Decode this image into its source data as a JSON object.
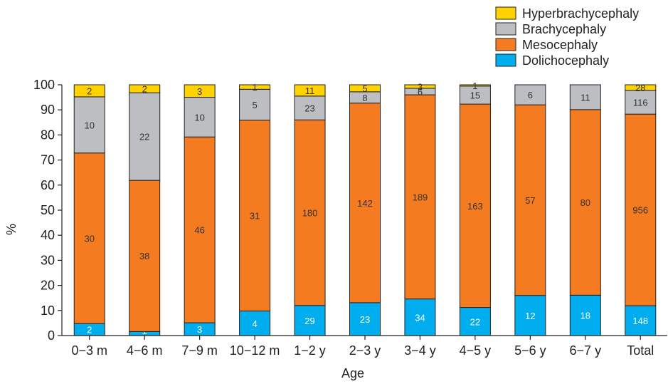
{
  "chart_data": {
    "type": "bar",
    "stacked": true,
    "categories": [
      "0−3 m",
      "4−6 m",
      "7−9 m",
      "10−12 m",
      "1−2 y",
      "2−3 y",
      "3−4 y",
      "4−5 y",
      "5−6 y",
      "6−7 y",
      "Total"
    ],
    "xlabel": "Age",
    "ylabel": "%",
    "ylim": [
      0,
      100
    ],
    "yticks": [
      "0",
      "10",
      "20",
      "30",
      "40",
      "50",
      "60",
      "70",
      "80",
      "90",
      "100"
    ],
    "grid": false,
    "legend_position": "top-right",
    "series": [
      {
        "name": "Dolichocephaly",
        "color": "#00aeef",
        "label_color": "#ffffff",
        "values": [
          4.8,
          1.6,
          5.1,
          9.8,
          12.0,
          13.1,
          14.6,
          11.2,
          16.0,
          16.1,
          11.9
        ],
        "labels": [
          "2",
          "1",
          "3",
          "4",
          "29",
          "23",
          "34",
          "22",
          "12",
          "18",
          "148"
        ]
      },
      {
        "name": "Mesocephaly",
        "color": "#f47b20",
        "label_color": "#333333",
        "values": [
          68.0,
          60.3,
          74.1,
          76.1,
          74.0,
          79.6,
          81.4,
          81.1,
          76.0,
          74.0,
          76.4
        ],
        "labels": [
          "30",
          "38",
          "46",
          "31",
          "180",
          "142",
          "189",
          "163",
          "57",
          "80",
          "956"
        ]
      },
      {
        "name": "Brachycephaly",
        "color": "#bdbec2",
        "label_color": "#333333",
        "values": [
          22.4,
          34.9,
          15.8,
          12.3,
          9.5,
          4.5,
          2.6,
          7.2,
          8.0,
          9.9,
          9.5
        ],
        "labels": [
          "10",
          "22",
          "10",
          "5",
          "23",
          "8",
          "6",
          "15",
          "6",
          "11",
          "116"
        ]
      },
      {
        "name": "Hyperbrachycephaly",
        "color": "#ffd200",
        "label_color": "#333333",
        "values": [
          4.8,
          3.2,
          5.0,
          1.8,
          4.5,
          2.8,
          1.4,
          0.5,
          0,
          0,
          2.2
        ],
        "labels": [
          "2",
          "2",
          "3",
          "1",
          "11",
          "5",
          "3",
          "1",
          "",
          "",
          "28"
        ]
      }
    ]
  }
}
